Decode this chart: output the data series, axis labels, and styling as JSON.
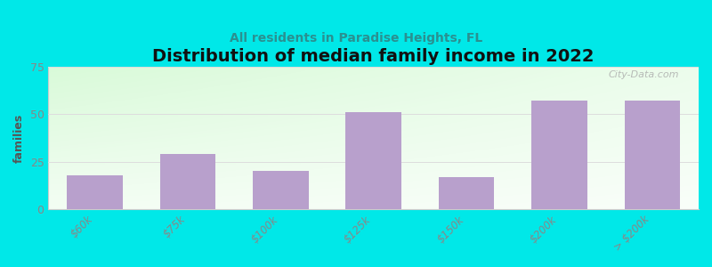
{
  "title": "Distribution of median family income in 2022",
  "subtitle": "All residents in Paradise Heights, FL",
  "categories": [
    "$60k",
    "$75k",
    "$100k",
    "$125k",
    "$150k",
    "$200k",
    "> $200k"
  ],
  "values": [
    18,
    29,
    20,
    51,
    17,
    57,
    57
  ],
  "bar_color": "#b8a0cc",
  "bar_alpha": 1.0,
  "ylabel": "families",
  "ylim": [
    0,
    75
  ],
  "yticks": [
    0,
    25,
    50,
    75
  ],
  "background_color": "#00e8e8",
  "plot_bg_color_topleft": "#d6f5d6",
  "plot_bg_color_topright": "#f5faf5",
  "plot_bg_color_bottom": "#ffffff",
  "title_fontsize": 14,
  "subtitle_fontsize": 10,
  "subtitle_color": "#2a9090",
  "watermark": "City-Data.com",
  "bar_width": 0.6,
  "grid_color": "#dddddd",
  "tick_label_color": "#888888"
}
